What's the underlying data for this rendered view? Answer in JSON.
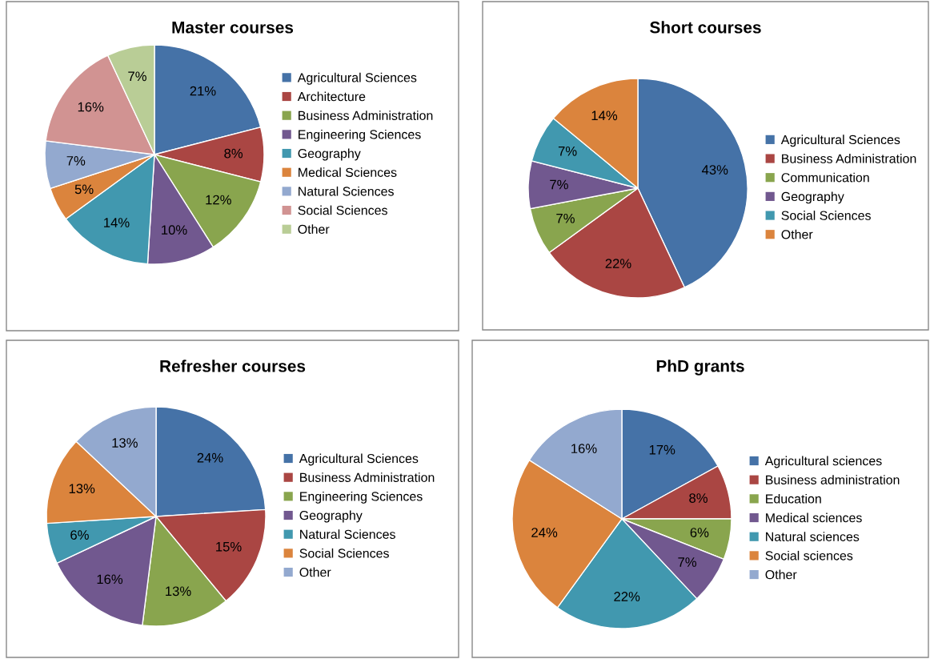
{
  "chart_data": [
    {
      "type": "pie",
      "title": "Master courses",
      "legend": "right",
      "categories": [
        "Agricultural Sciences",
        "Architecture",
        "Business Administration",
        "Engineering Sciences",
        "Geography",
        "Medical Sciences",
        "Natural Sciences",
        "Social Sciences",
        "Other"
      ],
      "values": [
        21,
        8,
        12,
        10,
        14,
        5,
        7,
        16,
        7
      ],
      "value_labels": [
        "21%",
        "8%",
        "12%",
        "10%",
        "14%",
        "5%",
        "7%",
        "16%",
        "7%"
      ],
      "colors": [
        "#4572a7",
        "#aa4643",
        "#89a54e",
        "#71588f",
        "#4198af",
        "#db843d",
        "#93a9cf",
        "#d19392",
        "#b9cd96"
      ]
    },
    {
      "type": "pie",
      "title": "Short courses",
      "legend": "right",
      "categories": [
        "Agricultural Sciences",
        "Business Administration",
        "Communication",
        "Geography",
        "Social Sciences",
        "Other"
      ],
      "values": [
        43,
        22,
        7,
        7,
        7,
        14
      ],
      "value_labels": [
        "43%",
        "22%",
        "7%",
        "7%",
        "7%",
        "14%"
      ],
      "colors": [
        "#4572a7",
        "#aa4643",
        "#89a54e",
        "#71588f",
        "#4198af",
        "#db843d"
      ]
    },
    {
      "type": "pie",
      "title": "Refresher courses",
      "legend": "right",
      "categories": [
        "Agricultural Sciences",
        "Business Administration",
        "Engineering Sciences",
        "Geography",
        "Natural Sciences",
        "Social Sciences",
        "Other"
      ],
      "values": [
        24,
        15,
        13,
        16,
        6,
        13,
        13
      ],
      "value_labels": [
        "24%",
        "15%",
        "13%",
        "16%",
        "6%",
        "13%",
        "13%"
      ],
      "colors": [
        "#4572a7",
        "#aa4643",
        "#89a54e",
        "#71588f",
        "#4198af",
        "#db843d",
        "#93a9cf"
      ]
    },
    {
      "type": "pie",
      "title": "PhD grants",
      "legend": "right",
      "categories": [
        "Agricultural sciences",
        "Business administration",
        "Education",
        "Medical sciences",
        "Natural sciences",
        "Social sciences",
        "Other"
      ],
      "values": [
        17,
        8,
        6,
        7,
        22,
        24,
        16
      ],
      "value_labels": [
        "17%",
        "8%",
        "6%",
        "7%",
        "22%",
        "24%",
        "16%"
      ],
      "colors": [
        "#4572a7",
        "#aa4643",
        "#89a54e",
        "#71588f",
        "#4198af",
        "#db843d",
        "#93a9cf"
      ]
    }
  ]
}
